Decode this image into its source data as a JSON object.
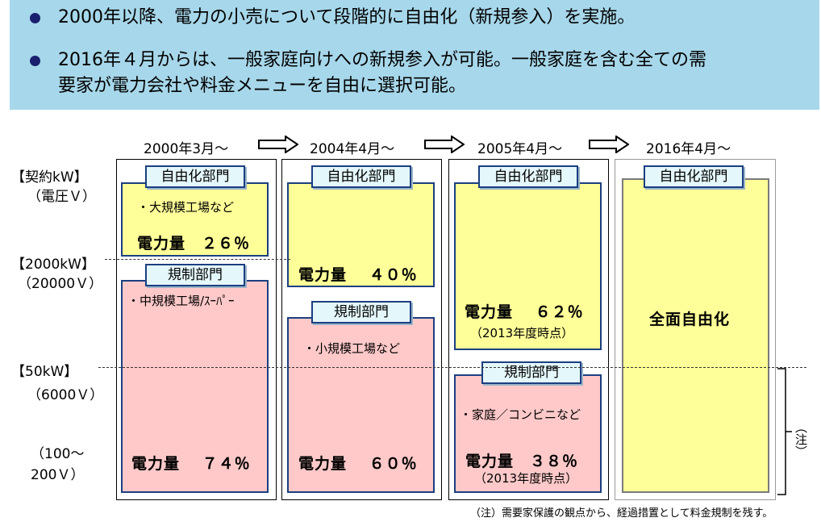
{
  "bullets": [
    "2000年以降、電力の小売について段階的に自由化（新規参入）を実施。",
    "2016年４月からは、一般家庭向けへの新規参入が可能。一般家庭を含む全ての需",
    "要家が電力会社や料金メニューを自由に選択可能。"
  ],
  "axis": {
    "title": "【契約kW】",
    "title_sub": "（電圧Ｖ）",
    "level1": "【2000kW】",
    "level1_sub": "（20000Ｖ）",
    "level2": "【50kW】",
    "level2_sub": "（6000Ｖ）",
    "level3_a": "（100～",
    "level3_b": "200Ｖ）"
  },
  "periods": [
    "2000年3月～",
    "2004年4月～",
    "2005年4月～",
    "2016年4月～"
  ],
  "columns": [
    {
      "free_label": "自由化部門",
      "free_desc": "・大規模工場など",
      "free_amount": "電力量　２６％",
      "reg_label": "規制部門",
      "reg_desc": "・中規模工場/ｽｰﾊﾟｰ",
      "reg_amount": "電力量　 ７４％"
    },
    {
      "free_label": "自由化部門",
      "free_amount": "電力量　 ４０％",
      "reg_label": "規制部門",
      "reg_desc": "・小規模工場など",
      "reg_amount": "電力量　 ６０％"
    },
    {
      "free_label": "自由化部門",
      "free_amount": "電力量　 ６２％",
      "free_note": "（2013年度時点）",
      "reg_label": "規制部門",
      "reg_desc": "・家庭／コンビニなど",
      "reg_amount": "電力量　３８％",
      "reg_note": "（2013年度時点）"
    },
    {
      "free_label": "自由化部門",
      "center": "全面自由化"
    }
  ],
  "bracket_note": "（注）",
  "footnote": "（注）需要家保護の観点から、経過措置として料金規制を残す。",
  "colors": {
    "banner": "#a7d7ea",
    "liberalized": "#ffff99",
    "regulated": "#ffc9c9",
    "border": "#1b3f80"
  }
}
